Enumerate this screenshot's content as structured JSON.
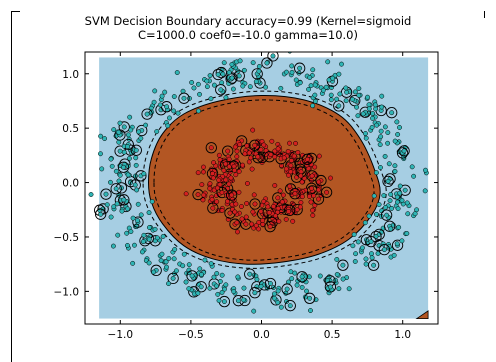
{
  "chart_data": {
    "type": "scatter",
    "title": "SVM Decision Boundary accuracy=0.99 (Kernel=sigmoid",
    "subtitle": "C=1000.0 coef0=-10.0 gamma=10.0)",
    "xlabel": "",
    "ylabel": "",
    "xlim": [
      -1.25,
      1.25
    ],
    "ylim": [
      -1.3,
      1.2
    ],
    "xticks": [
      -1.0,
      -0.5,
      0.0,
      0.5,
      1.0
    ],
    "xtick_labels": [
      "−1.0",
      "−0.5",
      "0.0",
      "0.5",
      "1.0"
    ],
    "yticks": [
      1.0,
      0.5,
      0.0,
      -0.5,
      -1.0
    ],
    "ytick_labels": [
      "1.0",
      "0.5",
      "0.0",
      "−0.5",
      "−1.0"
    ],
    "grid": false,
    "legend": "none",
    "decision_region": {
      "background_extent": {
        "x": [
          -1.15,
          1.18
        ],
        "y": [
          -1.25,
          1.15
        ]
      },
      "inner_boundary_points": [
        [
          -0.8,
          0.0
        ],
        [
          -0.78,
          0.22
        ],
        [
          -0.7,
          0.45
        ],
        [
          -0.55,
          0.63
        ],
        [
          -0.3,
          0.75
        ],
        [
          0.0,
          0.8
        ],
        [
          0.3,
          0.76
        ],
        [
          0.55,
          0.62
        ],
        [
          0.7,
          0.4
        ],
        [
          0.8,
          0.12
        ],
        [
          0.84,
          -0.1
        ],
        [
          0.78,
          -0.3
        ],
        [
          0.62,
          -0.52
        ],
        [
          0.4,
          -0.66
        ],
        [
          0.15,
          -0.73
        ],
        [
          -0.1,
          -0.75
        ],
        [
          -0.35,
          -0.7
        ],
        [
          -0.55,
          -0.58
        ],
        [
          -0.7,
          -0.38
        ],
        [
          -0.78,
          -0.18
        ]
      ],
      "corner_patch_points": [
        [
          1.1,
          -1.25
        ],
        [
          1.18,
          -1.25
        ],
        [
          1.18,
          -1.18
        ]
      ]
    },
    "series": [
      {
        "class": "outer",
        "approx_radius": 1.0
      },
      {
        "class": "inner",
        "approx_radius": 0.32
      }
    ],
    "colors": {
      "outer_region": "#a6cee3",
      "inner_region": "#b35623",
      "outer_points": "#2fb4b4",
      "inner_points": "#d42020",
      "support_ring": "#000000"
    }
  }
}
